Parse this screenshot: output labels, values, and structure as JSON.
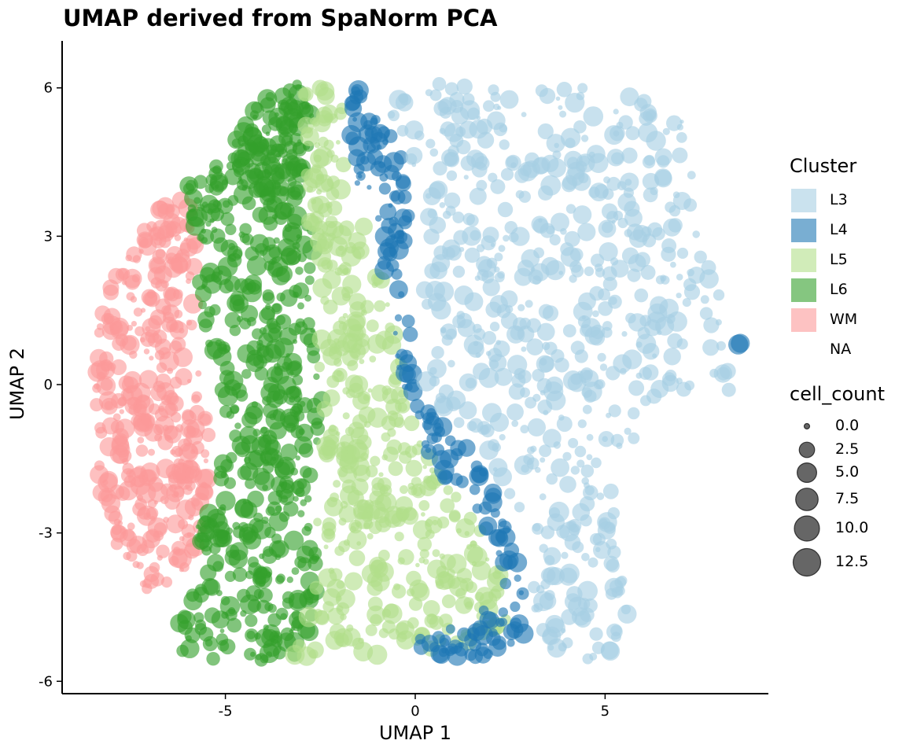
{
  "chart_data": {
    "type": "scatter",
    "title": "UMAP derived from SpaNorm PCA",
    "xlabel": "UMAP 1",
    "ylabel": "UMAP 2",
    "xlim": [
      -9.3,
      9.3
    ],
    "ylim": [
      -6.25,
      6.95
    ],
    "x_ticks": [
      -5,
      0,
      5
    ],
    "y_ticks": [
      -6,
      -3,
      0,
      3,
      6
    ],
    "x_tick_labels": [
      "-5",
      "0",
      "5"
    ],
    "y_tick_labels": [
      "-6",
      "-3",
      "0",
      "3",
      "6"
    ],
    "grid": false,
    "legend_placement": "right",
    "color_legend": {
      "title": "Cluster",
      "entries": [
        {
          "label": "L3",
          "color": "#A6CEE3"
        },
        {
          "label": "L4",
          "color": "#1F78B4"
        },
        {
          "label": "L5",
          "color": "#B2DF8A"
        },
        {
          "label": "L6",
          "color": "#33A02C"
        },
        {
          "label": "WM",
          "color": "#FB9A99"
        },
        {
          "label": "NA",
          "color": ""
        }
      ]
    },
    "size_legend": {
      "title": "cell_count",
      "entries": [
        {
          "label": "0.0",
          "value": 0.0
        },
        {
          "label": "2.5",
          "value": 2.5
        },
        {
          "label": "5.0",
          "value": 5.0
        },
        {
          "label": "7.5",
          "value": 7.5
        },
        {
          "label": "10.0",
          "value": 10.0
        },
        {
          "label": "12.5",
          "value": 12.5
        }
      ]
    },
    "series": [
      {
        "cluster": "WM",
        "color": "#FB9A99",
        "regions": [
          {
            "polygon": [
              [
                -6.7,
                3.6
              ],
              [
                -6.0,
                3.8
              ],
              [
                -5.7,
                2.4
              ],
              [
                -5.9,
                1.0
              ],
              [
                -5.5,
                -0.5
              ],
              [
                -5.3,
                -1.5
              ],
              [
                -5.6,
                -3.0
              ],
              [
                -6.2,
                -4.0
              ],
              [
                -7.0,
                -4.2
              ],
              [
                -7.8,
                -3.4
              ],
              [
                -8.4,
                -2.0
              ],
              [
                -8.4,
                0.0
              ],
              [
                -8.3,
                1.5
              ],
              [
                -7.6,
                2.8
              ],
              [
                -7.2,
                3.4
              ]
            ],
            "count": 380
          }
        ]
      },
      {
        "cluster": "L6",
        "color": "#33A02C",
        "regions": [
          {
            "polygon": [
              [
                -3.8,
                5.9
              ],
              [
                -3.0,
                6.1
              ],
              [
                -2.7,
                5.5
              ],
              [
                -2.8,
                4.6
              ],
              [
                -2.9,
                3.8
              ],
              [
                -3.8,
                3.6
              ],
              [
                -4.5,
                4.2
              ],
              [
                -4.9,
                4.7
              ],
              [
                -4.3,
                5.5
              ]
            ],
            "count": 130
          },
          {
            "polygon": [
              [
                -6.0,
                4.0
              ],
              [
                -4.7,
                4.8
              ],
              [
                -3.3,
                3.7
              ],
              [
                -2.6,
                3.0
              ],
              [
                -2.7,
                1.0
              ],
              [
                -2.4,
                -0.5
              ],
              [
                -2.8,
                -2.0
              ],
              [
                -2.6,
                -3.5
              ],
              [
                -2.4,
                -4.5
              ],
              [
                -3.0,
                -5.5
              ],
              [
                -4.5,
                -5.6
              ],
              [
                -6.4,
                -5.5
              ],
              [
                -6.2,
                -4.6
              ],
              [
                -5.4,
                -3.6
              ],
              [
                -5.8,
                -3.0
              ],
              [
                -5.2,
                -2.0
              ],
              [
                -5.0,
                -0.5
              ],
              [
                -5.6,
                1.0
              ],
              [
                -5.8,
                2.6
              ]
            ],
            "count": 520
          }
        ]
      },
      {
        "cluster": "L5",
        "color": "#B2DF8A",
        "regions": [
          {
            "polygon": [
              [
                -3.0,
                6.0
              ],
              [
                -2.2,
                6.2
              ],
              [
                -1.7,
                5.5
              ],
              [
                -1.8,
                4.4
              ],
              [
                -1.6,
                3.6
              ],
              [
                -1.2,
                3.0
              ],
              [
                -1.0,
                2.4
              ],
              [
                -0.6,
                1.5
              ],
              [
                -0.4,
                0.8
              ],
              [
                -0.2,
                -0.2
              ],
              [
                0.1,
                -1.0
              ],
              [
                0.6,
                -1.8
              ],
              [
                1.4,
                -2.5
              ],
              [
                2.1,
                -3.2
              ],
              [
                2.3,
                -3.8
              ],
              [
                2.4,
                -4.8
              ],
              [
                1.2,
                -5.3
              ],
              [
                0.0,
                -5.4
              ],
              [
                -1.5,
                -5.5
              ],
              [
                -3.3,
                -5.5
              ],
              [
                -2.7,
                -4.2
              ],
              [
                -2.6,
                -2.5
              ],
              [
                -2.3,
                -1.0
              ],
              [
                -2.6,
                0.5
              ],
              [
                -2.5,
                2.0
              ],
              [
                -2.8,
                3.3
              ],
              [
                -2.9,
                4.8
              ]
            ],
            "count": 460
          }
        ]
      },
      {
        "cluster": "L4",
        "color": "#1F78B4",
        "regions": [
          {
            "polygon": [
              [
                -1.8,
                6.2
              ],
              [
                -1.3,
                6.1
              ],
              [
                -0.9,
                5.6
              ],
              [
                -0.5,
                4.9
              ],
              [
                -0.2,
                4.3
              ],
              [
                0.0,
                3.7
              ],
              [
                -0.3,
                2.8
              ],
              [
                -0.4,
                1.9
              ],
              [
                0.0,
                1.3
              ],
              [
                -0.2,
                0.6
              ],
              [
                0.2,
                -0.2
              ],
              [
                0.7,
                -0.8
              ],
              [
                1.4,
                -1.3
              ],
              [
                2.0,
                -2.0
              ],
              [
                2.6,
                -2.8
              ],
              [
                2.7,
                -3.6
              ],
              [
                3.0,
                -4.3
              ],
              [
                3.1,
                -5.0
              ],
              [
                2.0,
                -5.5
              ],
              [
                0.6,
                -5.5
              ],
              [
                -0.1,
                -5.2
              ],
              [
                1.4,
                -4.8
              ],
              [
                2.2,
                -4.3
              ],
              [
                2.0,
                -3.2
              ],
              [
                1.6,
                -2.5
              ],
              [
                0.9,
                -2.0
              ],
              [
                0.2,
                -1.2
              ],
              [
                -0.1,
                -0.5
              ],
              [
                -0.5,
                0.5
              ],
              [
                -0.6,
                1.5
              ],
              [
                -0.9,
                2.4
              ],
              [
                -1.1,
                3.0
              ],
              [
                -1.5,
                3.8
              ],
              [
                -1.6,
                4.7
              ],
              [
                -1.8,
                5.5
              ]
            ],
            "count": 200
          },
          {
            "polygon": [
              [
                8.4,
                0.95
              ],
              [
                8.6,
                0.95
              ],
              [
                8.6,
                0.75
              ],
              [
                8.4,
                0.75
              ]
            ],
            "count": 2
          }
        ]
      },
      {
        "cluster": "L3",
        "color": "#A6CEE3",
        "regions": [
          {
            "polygon": [
              [
                -1.0,
                6.0
              ],
              [
                0.0,
                6.1
              ],
              [
                2.0,
                6.1
              ],
              [
                4.0,
                6.05
              ],
              [
                5.5,
                6.0
              ],
              [
                6.8,
                5.5
              ],
              [
                7.3,
                5.2
              ],
              [
                7.4,
                4.0
              ],
              [
                7.5,
                2.8
              ],
              [
                8.0,
                2.0
              ],
              [
                8.2,
                1.0
              ],
              [
                7.8,
                0.0
              ],
              [
                6.5,
                -0.3
              ],
              [
                6.0,
                -1.0
              ],
              [
                5.3,
                -1.6
              ],
              [
                5.2,
                -3.0
              ],
              [
                5.6,
                -4.5
              ],
              [
                5.9,
                -5.2
              ],
              [
                4.8,
                -5.6
              ],
              [
                3.4,
                -5.4
              ],
              [
                2.5,
                -5.2
              ],
              [
                3.2,
                -4.3
              ],
              [
                2.8,
                -3.4
              ],
              [
                2.8,
                -2.6
              ],
              [
                2.0,
                -1.6
              ],
              [
                1.4,
                -1.0
              ],
              [
                0.6,
                -0.4
              ],
              [
                0.2,
                0.2
              ],
              [
                0.4,
                1.0
              ],
              [
                0.2,
                2.0
              ],
              [
                0.4,
                3.0
              ],
              [
                0.2,
                3.8
              ],
              [
                -0.2,
                4.6
              ],
              [
                -0.6,
                5.2
              ],
              [
                -0.9,
                5.7
              ]
            ],
            "count": 620
          },
          {
            "polygon": [
              [
                8.1,
                0.3
              ],
              [
                8.3,
                0.3
              ],
              [
                8.3,
                -0.3
              ],
              [
                8.1,
                -0.3
              ]
            ],
            "count": 4
          }
        ]
      }
    ]
  }
}
